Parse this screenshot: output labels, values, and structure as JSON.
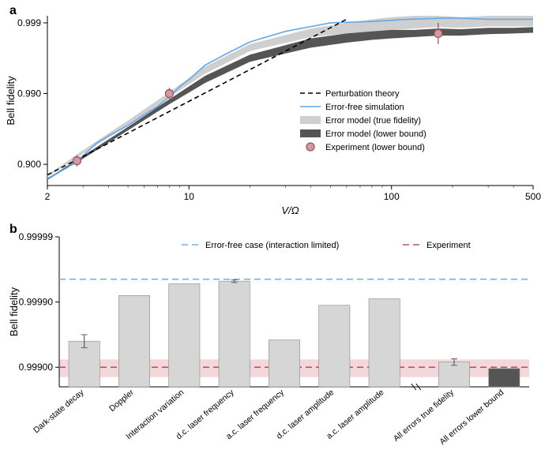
{
  "panelA": {
    "label": "a",
    "type": "line-scatter-log",
    "xlabel": "V/Ω",
    "ylabel": "Bell fidelity",
    "xlim": [
      2,
      500
    ],
    "xticks": [
      2,
      10,
      100,
      500
    ],
    "ylim_log10_1mF": [
      -3.1,
      -0.7
    ],
    "yticks_fidelity": [
      0.9,
      0.99,
      0.999
    ],
    "background_color": "#ffffff",
    "axis_color": "#000000",
    "tick_fontsize": 12,
    "label_fontsize": 13,
    "legend_fontsize": 11,
    "perturbation": {
      "color": "#000000",
      "dash": "6,4",
      "width": 1.6,
      "x": [
        2,
        60
      ],
      "log10_1mF": [
        -0.85,
        -3.05
      ]
    },
    "error_free_sim": {
      "color": "#64a8e8",
      "width": 1.6,
      "x": [
        2,
        2.5,
        3,
        3.5,
        4,
        5,
        6,
        7,
        8,
        9,
        10,
        12,
        15,
        20,
        30,
        50,
        80,
        120,
        200,
        300,
        500
      ],
      "log10_1mF": [
        -0.8,
        -0.95,
        -1.12,
        -1.3,
        -1.4,
        -1.55,
        -1.7,
        -1.82,
        -1.95,
        -2.1,
        -2.2,
        -2.4,
        -2.55,
        -2.73,
        -2.88,
        -3.0,
        -3.02,
        -3.05,
        -3.07,
        -3.05,
        -3.05
      ]
    },
    "band_true": {
      "fill": "#cfcfcf",
      "x": [
        2,
        3,
        5,
        8,
        12,
        20,
        40,
        60,
        80,
        100,
        130,
        170,
        220,
        300,
        400,
        500
      ],
      "lo": [
        -0.82,
        -1.15,
        -1.55,
        -1.95,
        -2.28,
        -2.6,
        -2.8,
        -2.85,
        -2.88,
        -2.9,
        -2.92,
        -2.94,
        -2.93,
        -2.95,
        -2.95,
        -2.95
      ],
      "hi": [
        -0.85,
        -1.2,
        -1.62,
        -2.02,
        -2.38,
        -2.7,
        -2.92,
        -3.0,
        -3.05,
        -3.08,
        -3.1,
        -3.1,
        -3.08,
        -3.1,
        -3.1,
        -3.1
      ]
    },
    "band_lower": {
      "fill": "#555555",
      "x": [
        2,
        3,
        5,
        8,
        12,
        20,
        40,
        60,
        80,
        100,
        130,
        170,
        220,
        300,
        400,
        500
      ],
      "lo": [
        -0.78,
        -1.08,
        -1.48,
        -1.85,
        -2.15,
        -2.45,
        -2.65,
        -2.72,
        -2.76,
        -2.78,
        -2.8,
        -2.82,
        -2.82,
        -2.84,
        -2.85,
        -2.86
      ],
      "hi": [
        -0.8,
        -1.12,
        -1.53,
        -1.92,
        -2.25,
        -2.55,
        -2.78,
        -2.85,
        -2.88,
        -2.9,
        -2.9,
        -2.92,
        -2.91,
        -2.93,
        -2.93,
        -2.94
      ]
    },
    "experiment": {
      "marker_fill": "#d49aa3",
      "marker_stroke": "#a0535f",
      "marker_r": 5,
      "errbar_color": "#a0535f",
      "x": [
        2.8,
        8,
        170
      ],
      "log10_1mF": [
        -1.05,
        -2.0,
        -2.85
      ],
      "err_lo": [
        -0.97,
        -1.92,
        -2.7
      ],
      "err_hi": [
        -1.13,
        -2.08,
        -3.0
      ]
    },
    "legend": [
      {
        "label": "Perturbation theory",
        "kind": "dash",
        "color": "#000000"
      },
      {
        "label": "Error-free simulation",
        "kind": "line",
        "color": "#64a8e8"
      },
      {
        "label": "Error model (true fidelity)",
        "kind": "box",
        "color": "#cfcfcf"
      },
      {
        "label": "Error model (lower bound)",
        "kind": "box",
        "color": "#555555"
      },
      {
        "label": "Experiment (lower bound)",
        "kind": "marker",
        "fill": "#d49aa3",
        "stroke": "#a0535f"
      }
    ]
  },
  "panelB": {
    "label": "b",
    "type": "bar",
    "ylabel": "Bell fidelity",
    "background_color": "#ffffff",
    "axis_color": "#000000",
    "tick_fontsize": 12,
    "label_fontsize": 13,
    "xtick_fontsize": 10.5,
    "bar_fill_light": "#d6d6d6",
    "bar_fill_dark": "#555555",
    "bar_stroke": "#888888",
    "ylim_log10_1mF": [
      -5.0,
      -2.7
    ],
    "yticks_fidelity": [
      0.999,
      0.9999,
      0.99999
    ],
    "yticks_log10_1mF": [
      -3.0,
      -4.0,
      -5.0
    ],
    "horiz_lines": {
      "error_free": {
        "label": "Error-free case (interaction limited)",
        "color": "#76b2ea",
        "dash": "8,5",
        "log10_1mF": -4.35
      },
      "experiment": {
        "label": "Experiment",
        "color": "#b45866",
        "dash": "8,5",
        "log10_1mF": -3.0
      }
    },
    "experiment_band": {
      "fill": "#f4d7db",
      "lo": -2.85,
      "hi": -3.12
    },
    "bars_main": [
      {
        "name": "Dark-state decay",
        "val": -3.4,
        "err": 0.1
      },
      {
        "name": "Doppler",
        "val": -4.1,
        "err": 0
      },
      {
        "name": "Interaction variation",
        "val": -4.28,
        "err": 0
      },
      {
        "name": "d.c. laser frequency",
        "val": -4.32,
        "err": 0.02
      },
      {
        "name": "a.c. laser frequency",
        "val": -3.42,
        "err": 0
      },
      {
        "name": "d.c. laser amplitude",
        "val": -3.95,
        "err": 0
      },
      {
        "name": "a.c. laser amplitude",
        "val": -4.05,
        "err": 0
      }
    ],
    "bars_combined": [
      {
        "name": "All errors true fidelity",
        "val": -3.08,
        "err": 0.05,
        "fill": "light"
      },
      {
        "name": "All errors lower bound",
        "val": -2.98,
        "err": 0,
        "fill": "dark"
      }
    ]
  }
}
